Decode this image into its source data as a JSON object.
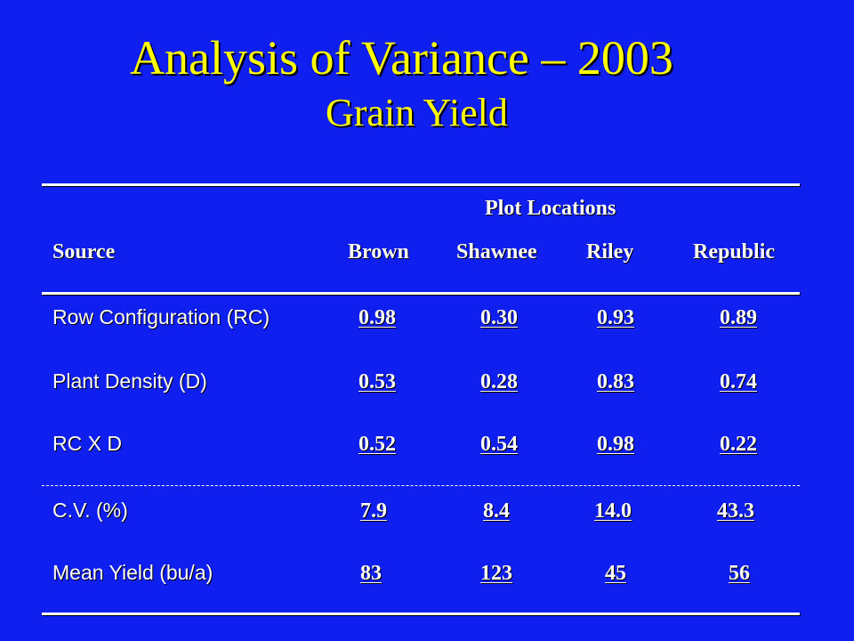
{
  "title": "Analysis of Variance – 2003",
  "subtitle": "Grain Yield",
  "table": {
    "group_header": "Plot Locations",
    "columns": [
      "Source",
      "Brown",
      "Shawnee",
      "Riley",
      "Republic"
    ],
    "rows": [
      {
        "source": "Row Configuration (RC)",
        "values": [
          "0.98",
          "0.30",
          "0.93",
          "0.89"
        ]
      },
      {
        "source": "Plant Density (D)",
        "values": [
          "0.53",
          "0.28",
          "0.83",
          "0.74"
        ]
      },
      {
        "source": "RC X D",
        "values": [
          "0.52",
          "0.54",
          "0.98",
          "0.22"
        ]
      },
      {
        "source": "C.V. (%)",
        "values": [
          "7.9",
          "8.4",
          "14.0",
          "43.3"
        ]
      },
      {
        "source": "Mean Yield (bu/a)",
        "values": [
          "83",
          "123",
          "45",
          "56"
        ]
      }
    ]
  },
  "colors": {
    "background": "#0f1ff0",
    "title": "#ffff00",
    "text": "#ffffff"
  }
}
